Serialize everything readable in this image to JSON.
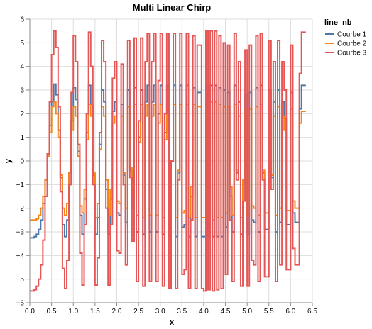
{
  "chart_data": {
    "type": "line",
    "interpolation": "step",
    "title": "Multi Linear Chirp",
    "xlabel": "x",
    "ylabel": "y",
    "xlim": [
      0,
      6.5
    ],
    "ylim": [
      -6,
      6
    ],
    "x_ticks": [
      "0.0",
      "0.5",
      "1.0",
      "1.5",
      "2.0",
      "2.5",
      "3.0",
      "3.5",
      "4.0",
      "4.5",
      "5.0",
      "5.5",
      "6.0",
      "6.5"
    ],
    "y_ticks": [
      "−6",
      "−5",
      "−4",
      "−3",
      "−2",
      "−1",
      "0",
      "1",
      "2",
      "3",
      "4",
      "5",
      "6"
    ],
    "grid": true,
    "legend": {
      "title": "line_nb",
      "placement": "right"
    },
    "x": [
      0,
      0.05,
      0.1,
      0.15,
      0.2,
      0.25,
      0.3,
      0.35,
      0.4,
      0.45,
      0.5,
      0.55,
      0.6,
      0.65,
      0.7,
      0.75,
      0.8,
      0.85,
      0.9,
      0.95,
      1,
      1.05,
      1.1,
      1.15,
      1.2,
      1.25,
      1.3,
      1.35,
      1.4,
      1.45,
      1.5,
      1.55,
      1.6,
      1.65,
      1.7,
      1.75,
      1.8,
      1.85,
      1.9,
      1.95,
      2,
      2.05,
      2.1,
      2.15,
      2.2,
      2.25,
      2.3,
      2.35,
      2.4,
      2.45,
      2.5,
      2.55,
      2.6,
      2.65,
      2.7,
      2.75,
      2.8,
      2.85,
      2.9,
      2.95,
      3,
      3.05,
      3.1,
      3.15,
      3.2,
      3.25,
      3.3,
      3.35,
      3.4,
      3.45,
      3.5,
      3.55,
      3.6,
      3.65,
      3.7,
      3.75,
      3.8,
      3.85,
      3.9,
      3.95,
      4,
      4.05,
      4.1,
      4.15,
      4.2,
      4.25,
      4.3,
      4.35,
      4.4,
      4.45,
      4.5,
      4.55,
      4.6,
      4.65,
      4.7,
      4.75,
      4.8,
      4.85,
      4.9,
      4.95,
      5,
      5.05,
      5.1,
      5.15,
      5.2,
      5.25,
      5.3,
      5.35,
      5.4,
      5.45,
      5.5,
      5.55,
      5.6,
      5.65,
      5.7,
      5.75,
      5.8,
      5.85,
      5.9,
      5.95,
      6,
      6.05,
      6.1,
      6.15,
      6.2,
      6.25,
      6.3
    ],
    "series": [
      {
        "name": "Courbe 1",
        "color": "#4c78a8",
        "values": [
          -3.25,
          -3.25,
          -3.2,
          -3.1,
          -2.9,
          -2.5,
          -1.8,
          -0.8,
          0.3,
          1.5,
          2.5,
          3.25,
          2.8,
          1.3,
          -0.7,
          -2.7,
          -3.2,
          -2.5,
          -0.5,
          1.7,
          3.1,
          2.6,
          0.4,
          -2.3,
          -3.1,
          -1.6,
          1.2,
          3.2,
          2.4,
          -0.6,
          -3.1,
          -2.4,
          0.7,
          3.0,
          2.5,
          -1.2,
          -3.1,
          -1.6,
          2.1,
          2.5,
          -2.2,
          -2.3,
          2.4,
          -0.6,
          -2.6,
          3.0,
          -0.4,
          -2.0,
          3.1,
          -3.0,
          1.0,
          3.0,
          -3.1,
          2.5,
          3.2,
          -3.0,
          2.5,
          3.2,
          -3.0,
          2.0,
          3.2,
          -3.1,
          1.2,
          3.2,
          -3.2,
          0.0,
          3.2,
          -3.2,
          -0.5,
          3.2,
          -2.8,
          -2.7,
          3.2,
          -3.2,
          -1.5,
          3.1,
          -3.2,
          2.9,
          2.9,
          -3.2,
          -3.2,
          3.2,
          -3.2,
          3.2,
          -3.2,
          3.2,
          -3.2,
          3.1,
          -3.2,
          3.0,
          -2.8,
          2.9,
          -1.5,
          -3.0,
          3.2,
          -0.5,
          2.5,
          -3.1,
          -1.0,
          2.8,
          -3.1,
          2.9,
          -2.5,
          -2.6,
          3.1,
          -3.0,
          3.2,
          -0.5,
          -2.9,
          -2.9,
          3.0,
          -0.7,
          2.5,
          -3.0,
          3.0,
          -2.6,
          2.5,
          1.8,
          -2.7,
          -2.7,
          2.9,
          -2.2,
          -2.6,
          -2.6,
          2.2,
          3.2,
          3.2
        ]
      },
      {
        "name": "Courbe 2",
        "color": "#f58518",
        "values": [
          -2.5,
          -2.5,
          -2.5,
          -2.45,
          -2.3,
          -2.0,
          -1.5,
          -0.8,
          0.2,
          1.2,
          2.3,
          2.5,
          2.0,
          1.0,
          -0.6,
          -2.0,
          -2.3,
          -1.8,
          -0.5,
          1.3,
          2.3,
          1.9,
          0.2,
          -1.9,
          -2.2,
          -1.2,
          0.9,
          2.4,
          1.9,
          -0.5,
          -2.4,
          -1.8,
          0.5,
          2.3,
          1.9,
          -0.8,
          -2.3,
          -1.2,
          1.6,
          1.9,
          -1.7,
          -1.8,
          1.9,
          -0.5,
          -2.0,
          2.3,
          -0.3,
          -1.5,
          2.4,
          -2.3,
          0.8,
          2.4,
          -2.4,
          1.9,
          2.4,
          -2.3,
          1.9,
          2.4,
          -2.3,
          1.6,
          2.4,
          -2.4,
          0.9,
          2.4,
          -2.4,
          0.0,
          2.4,
          -2.4,
          -0.4,
          2.4,
          -2.2,
          -2.1,
          2.4,
          -2.4,
          -1.1,
          2.4,
          -2.4,
          2.3,
          2.3,
          -2.4,
          -2.4,
          2.5,
          -2.4,
          2.5,
          -2.5,
          2.5,
          -2.4,
          2.4,
          -2.4,
          2.3,
          -2.2,
          2.3,
          -1.1,
          -2.3,
          2.4,
          -0.4,
          1.9,
          -2.4,
          -0.8,
          2.1,
          -2.3,
          2.2,
          -1.9,
          -2.0,
          2.3,
          -2.3,
          2.4,
          -0.4,
          -2.2,
          -2.2,
          2.3,
          -0.6,
          1.9,
          -2.3,
          2.3,
          -2.0,
          1.9,
          1.3,
          -2.1,
          -2.1,
          2.2,
          -1.7,
          -2.0,
          -2.0,
          1.6,
          2.1,
          2.1
        ]
      },
      {
        "name": "Courbe 3",
        "color": "#e45756",
        "values": [
          -5.5,
          -5.5,
          -5.45,
          -5.3,
          -5.0,
          -4.4,
          -3.35,
          -1.5,
          0.3,
          2.5,
          4.5,
          5.5,
          4.8,
          2.3,
          -1.3,
          -4.55,
          -5.4,
          -4.2,
          -1.0,
          2.9,
          5.3,
          4.2,
          0.7,
          -3.9,
          -5.25,
          -2.7,
          2.0,
          5.45,
          4.0,
          -1.0,
          -5.25,
          -4.1,
          1.2,
          5.1,
          4.2,
          -2.0,
          -5.25,
          -2.7,
          3.5,
          4.2,
          -3.8,
          -3.9,
          4.1,
          -1.0,
          -4.4,
          5.1,
          -0.7,
          -3.4,
          5.2,
          -5.1,
          1.7,
          5.2,
          -5.3,
          4.2,
          5.4,
          -5.1,
          4.2,
          5.4,
          -5.1,
          3.4,
          5.4,
          -5.3,
          2.0,
          5.4,
          -5.4,
          0.0,
          5.4,
          -5.4,
          -0.8,
          5.4,
          -4.8,
          -4.6,
          5.4,
          -5.4,
          -2.5,
          5.3,
          -5.4,
          4.9,
          4.9,
          -5.4,
          -5.5,
          5.5,
          -5.45,
          5.5,
          -5.5,
          5.5,
          -5.45,
          5.3,
          -5.4,
          5.0,
          -4.8,
          4.9,
          -2.5,
          -5.1,
          5.4,
          -0.8,
          4.2,
          -5.3,
          -1.7,
          4.7,
          -5.3,
          4.9,
          -4.2,
          -4.4,
          5.3,
          -5.1,
          5.4,
          -0.8,
          -4.9,
          -4.9,
          5.1,
          -1.2,
          4.2,
          -5.1,
          5.1,
          -4.4,
          4.2,
          3.0,
          -4.6,
          -4.6,
          4.9,
          -3.7,
          -4.4,
          -4.4,
          3.7,
          5.45,
          5.45
        ]
      }
    ]
  }
}
